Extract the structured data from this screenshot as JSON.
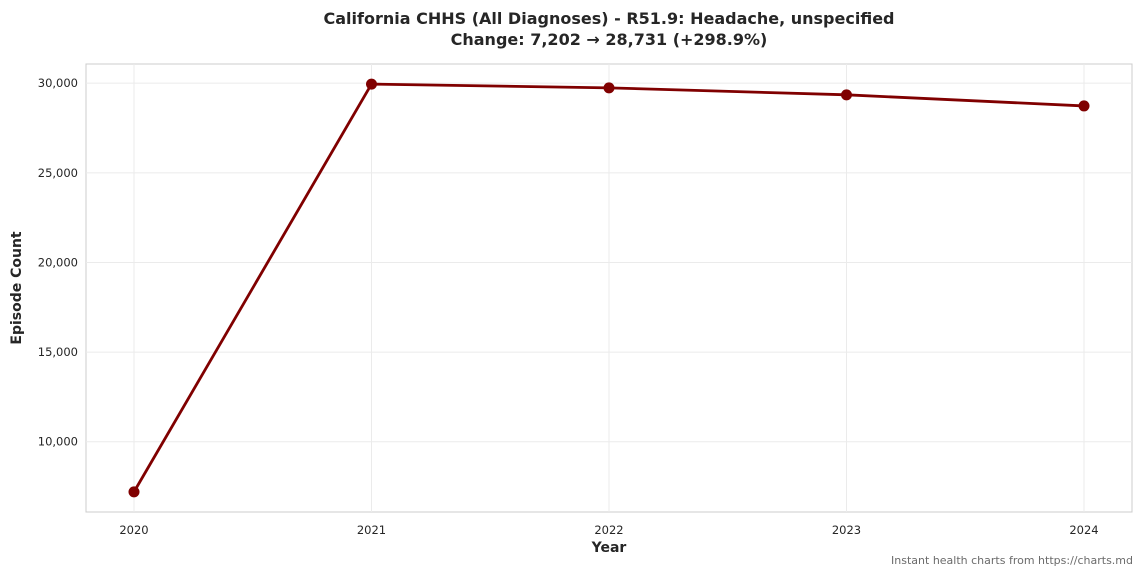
{
  "chart_data": {
    "type": "line",
    "title": "California CHHS (All Diagnoses) - R51.9: Headache, unspecified",
    "subtitle": "Change: 7,202 → 28,731 (+298.9%)",
    "xlabel": "Year",
    "ylabel": "Episode Count",
    "x": [
      "2020",
      "2021",
      "2022",
      "2023",
      "2024"
    ],
    "series": [
      {
        "values": [
          7202,
          29950,
          29740,
          29350,
          28731
        ],
        "color": "#800000"
      }
    ],
    "yticks": [
      10000,
      15000,
      20000,
      25000,
      30000
    ],
    "ytick_labels": [
      "10,000",
      "15,000",
      "20,000",
      "25,000",
      "30,000"
    ],
    "ylim": [
      6080,
      31070
    ],
    "grid": true,
    "legend": "none"
  },
  "footer": {
    "text": "Instant health charts from https://charts.md"
  },
  "colors": {
    "grid": "#ebebeb",
    "axes": "#cccccc",
    "line": "#800000"
  }
}
